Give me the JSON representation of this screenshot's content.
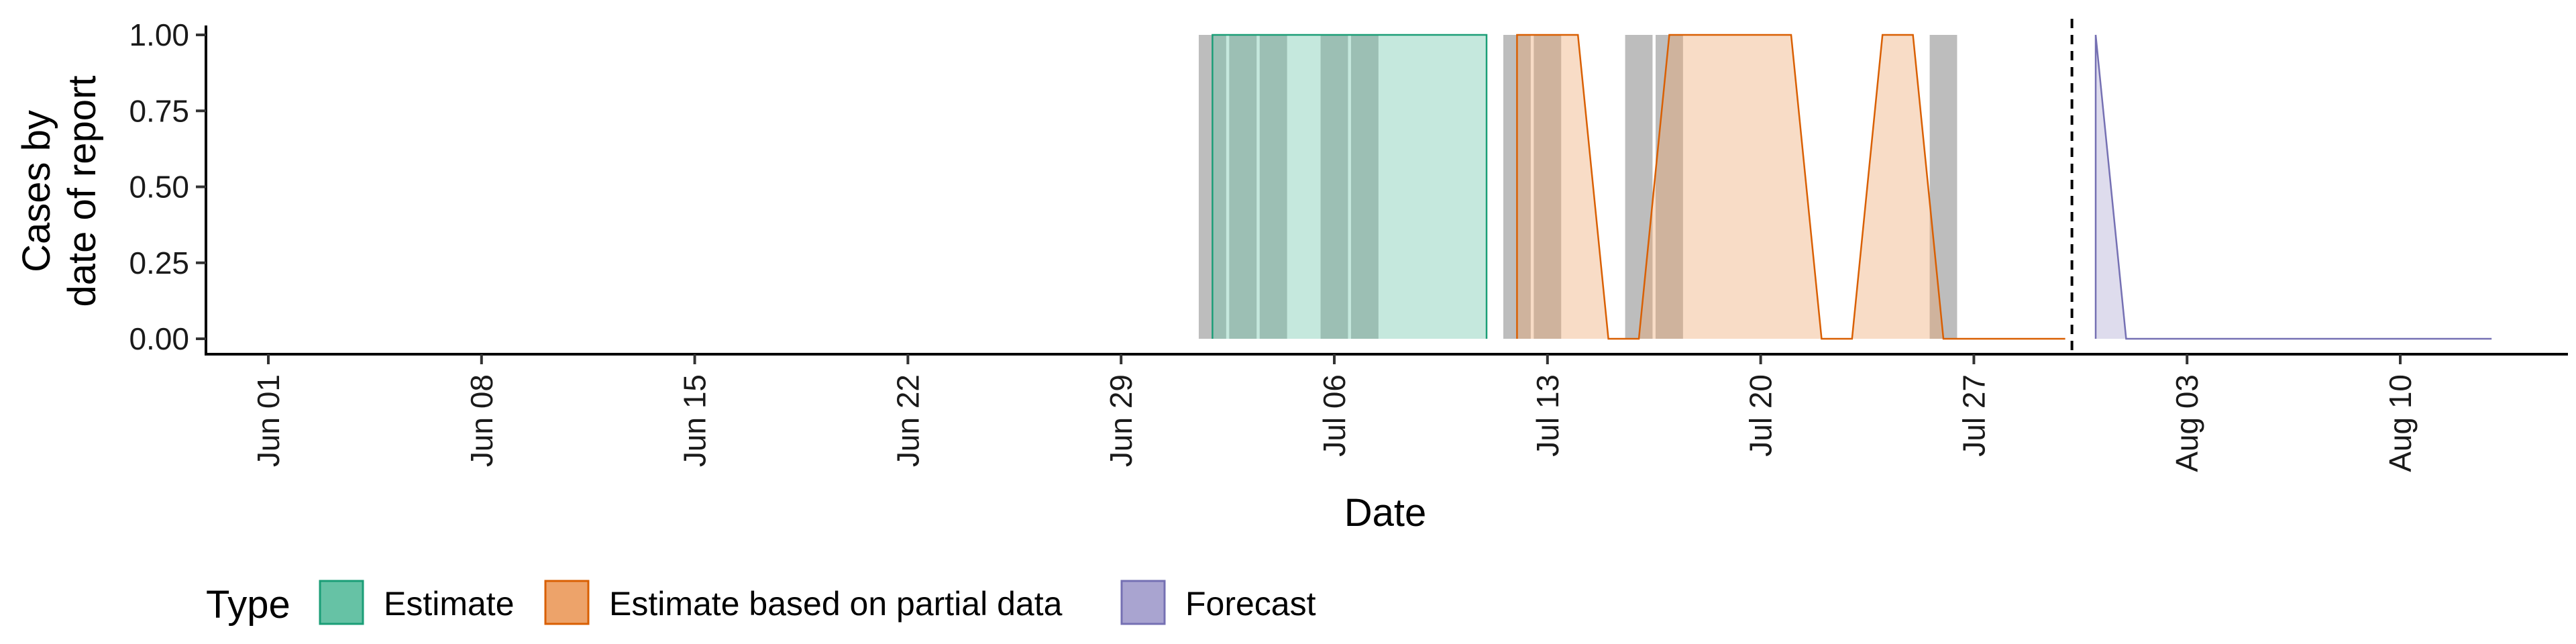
{
  "chart_data": {
    "type": "area",
    "xlabel": "Date",
    "ylabel_lines": [
      "Cases by",
      "date of report"
    ],
    "x_ticks": [
      "Jun 01",
      "Jun 08",
      "Jun 15",
      "Jun 22",
      "Jun 29",
      "Jul 06",
      "Jul 13",
      "Jul 20",
      "Jul 27",
      "Aug 03",
      "Aug 10"
    ],
    "y_ticks": [
      "0.00",
      "0.25",
      "0.50",
      "0.75",
      "1.00"
    ],
    "ylim": [
      0,
      1
    ],
    "xlim": [
      "2020-05-26",
      "2020-08-17"
    ],
    "grid": false,
    "legend": {
      "title": "Type",
      "position": "bottom-left",
      "entries": [
        {
          "name": "Estimate",
          "fill": "#66c2a5",
          "stroke": "#1b9e77"
        },
        {
          "name": "Estimate based on partial data",
          "fill": "#eda36a",
          "stroke": "#d95f02"
        },
        {
          "name": "Forecast",
          "fill": "#a9a4d0",
          "stroke": "#7570b3"
        }
      ]
    },
    "reported_bars": {
      "color": "#bdbdbd",
      "dates": [
        "2020-07-02",
        "2020-07-03",
        "2020-07-04",
        "2020-07-06",
        "2020-07-07",
        "2020-07-12",
        "2020-07-13",
        "2020-07-16",
        "2020-07-17",
        "2020-07-26"
      ],
      "values": [
        1,
        1,
        1,
        1,
        1,
        1,
        1,
        1,
        1,
        1
      ]
    },
    "forecast_date": "2020-07-30",
    "series": [
      {
        "name": "Estimate",
        "fill": "#66c2a5",
        "stroke": "#1b9e77",
        "points": [
          {
            "date": "2020-07-02",
            "value": 0
          },
          {
            "date": "2020-07-02",
            "value": 1
          },
          {
            "date": "2020-07-11",
            "value": 1
          },
          {
            "date": "2020-07-11",
            "value": 0
          }
        ]
      },
      {
        "name": "Estimate based on partial data",
        "fill": "#eda36a",
        "stroke": "#d95f02",
        "points": [
          {
            "date": "2020-07-12",
            "value": 0
          },
          {
            "date": "2020-07-12",
            "value": 1
          },
          {
            "date": "2020-07-13",
            "value": 1
          },
          {
            "date": "2020-07-14",
            "value": 1
          },
          {
            "date": "2020-07-15",
            "value": 0
          },
          {
            "date": "2020-07-16",
            "value": 0
          },
          {
            "date": "2020-07-17",
            "value": 1
          },
          {
            "date": "2020-07-18",
            "value": 1
          },
          {
            "date": "2020-07-19",
            "value": 1
          },
          {
            "date": "2020-07-20",
            "value": 1
          },
          {
            "date": "2020-07-21",
            "value": 1
          },
          {
            "date": "2020-07-22",
            "value": 0
          },
          {
            "date": "2020-07-23",
            "value": 0
          },
          {
            "date": "2020-07-24",
            "value": 1
          },
          {
            "date": "2020-07-25",
            "value": 1
          },
          {
            "date": "2020-07-26",
            "value": 0
          },
          {
            "date": "2020-07-27",
            "value": 0
          },
          {
            "date": "2020-07-28",
            "value": 0
          },
          {
            "date": "2020-07-29",
            "value": 0
          },
          {
            "date": "2020-07-30",
            "value": 0
          }
        ]
      },
      {
        "name": "Forecast",
        "fill": "#a9a4d0",
        "stroke": "#7570b3",
        "points": [
          {
            "date": "2020-07-31",
            "value": 0
          },
          {
            "date": "2020-07-31",
            "value": 1
          },
          {
            "date": "2020-08-01",
            "value": 0
          },
          {
            "date": "2020-08-13",
            "value": 0
          }
        ]
      }
    ]
  }
}
